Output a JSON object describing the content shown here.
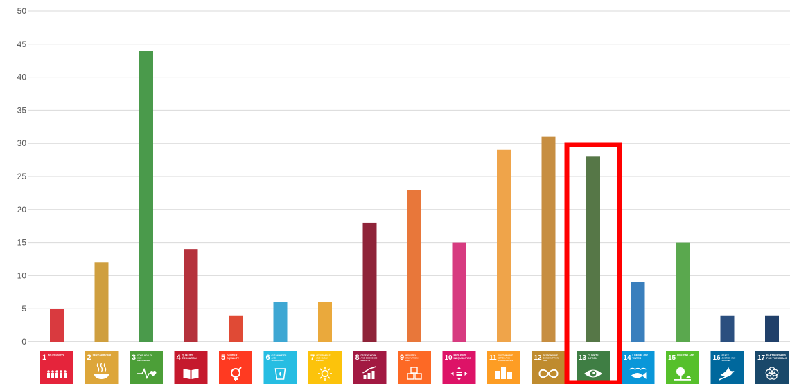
{
  "chart_data": {
    "type": "bar",
    "title": "",
    "xlabel": "",
    "ylabel": "",
    "ylim": [
      0,
      50
    ],
    "yticks": [
      0,
      5,
      10,
      15,
      20,
      25,
      30,
      35,
      40,
      45,
      50
    ],
    "grid": true,
    "highlighted_category": "13",
    "highlight_color": "#ff0000",
    "categories": [
      {
        "num": "1",
        "title": "NO POVERTY",
        "color": "#e5243b",
        "icon": "family-icon"
      },
      {
        "num": "2",
        "title": "ZERO HUNGER",
        "color": "#dda63a",
        "icon": "bowl-icon"
      },
      {
        "num": "3",
        "title": "GOOD HEALTH AND WELL-BEING",
        "color": "#4c9f38",
        "icon": "heartbeat-icon"
      },
      {
        "num": "4",
        "title": "QUALITY EDUCATION",
        "color": "#c5192d",
        "icon": "book-icon"
      },
      {
        "num": "5",
        "title": "GENDER EQUALITY",
        "color": "#ff3a21",
        "icon": "gender-icon"
      },
      {
        "num": "6",
        "title": "CLEAN WATER AND SANITATION",
        "color": "#26bde2",
        "icon": "water-glass-icon"
      },
      {
        "num": "7",
        "title": "AFFORDABLE AND CLEAN ENERGY",
        "color": "#fcc30b",
        "icon": "sun-icon"
      },
      {
        "num": "8",
        "title": "DECENT WORK AND ECONOMIC GROWTH",
        "color": "#a21942",
        "icon": "growth-chart-icon"
      },
      {
        "num": "9",
        "title": "INDUSTRY, INNOVATION AND INFRASTRUCTURE",
        "color": "#fd6925",
        "icon": "cubes-icon"
      },
      {
        "num": "10",
        "title": "REDUCED INEQUALITIES",
        "color": "#dd1367",
        "icon": "equality-icon"
      },
      {
        "num": "11",
        "title": "SUSTAINABLE CITIES AND COMMUNITIES",
        "color": "#fd9d24",
        "icon": "buildings-icon"
      },
      {
        "num": "12",
        "title": "RESPONSIBLE CONSUMPTION AND PRODUCTION",
        "color": "#bf8b2e",
        "icon": "infinity-icon"
      },
      {
        "num": "13",
        "title": "CLIMATE ACTION",
        "color": "#3f7e44",
        "icon": "eye-globe-icon"
      },
      {
        "num": "14",
        "title": "LIFE BELOW WATER",
        "color": "#0a97d9",
        "icon": "fish-icon"
      },
      {
        "num": "15",
        "title": "LIFE ON LAND",
        "color": "#56c02b",
        "icon": "tree-icon"
      },
      {
        "num": "16",
        "title": "PEACE, JUSTICE AND STRONG INSTITUTIONS",
        "color": "#00689d",
        "icon": "dove-icon"
      },
      {
        "num": "17",
        "title": "PARTNERSHIPS FOR THE GOALS",
        "color": "#19486a",
        "icon": "rings-icon"
      }
    ],
    "series": [
      {
        "values": [
          5,
          12,
          44,
          14,
          4,
          6,
          6,
          18,
          23,
          15,
          29,
          31,
          28,
          9,
          15,
          4,
          4
        ],
        "colors": [
          "#d93a3f",
          "#cf9f3f",
          "#4a9a4b",
          "#b5323c",
          "#e04a35",
          "#3ea7d3",
          "#eaa93c",
          "#8f2439",
          "#e8773a",
          "#d73b80",
          "#efa44a",
          "#c78e41",
          "#567747",
          "#3a7fbd",
          "#5aa84e",
          "#2b4f7f",
          "#21406a"
        ]
      }
    ]
  }
}
